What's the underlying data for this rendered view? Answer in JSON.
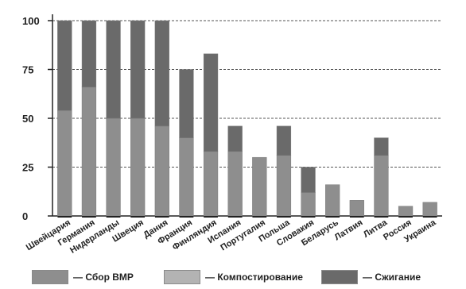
{
  "chart_data": {
    "type": "bar",
    "stacked": true,
    "categories": [
      "Швейцария",
      "Германия",
      "Нидерланды",
      "Швеция",
      "Дания",
      "Франция",
      "Финляндия",
      "Испания",
      "Португалия",
      "Польша",
      "Словакия",
      "Беларусь",
      "Латвия",
      "Литва",
      "Россия",
      "Украина"
    ],
    "series": [
      {
        "name": "Сбор ВМР",
        "color": "#8e8e8e",
        "values": [
          54,
          66,
          50,
          50,
          46,
          40,
          33,
          33,
          30,
          31,
          12,
          16,
          8,
          31,
          5,
          7
        ]
      },
      {
        "name": "Компостирование",
        "color": "#b3b3b3",
        "values": [
          0,
          0,
          0,
          0,
          0,
          0,
          0,
          0,
          0,
          0,
          0,
          0,
          0,
          0,
          0,
          0
        ]
      },
      {
        "name": "Сжигание",
        "color": "#6a6a6a",
        "values": [
          46,
          34,
          50,
          50,
          54,
          35,
          50,
          13,
          0,
          15,
          13,
          0,
          0,
          9,
          0,
          0
        ]
      }
    ],
    "ylim": [
      0,
      100
    ],
    "yticks": [
      "0",
      "25",
      "50",
      "75",
      "100"
    ],
    "grid": "dotted horizontal",
    "legend": "bottom"
  },
  "legend": {
    "items": [
      {
        "label": "— Сбор ВМР",
        "color": "#8e8e8e"
      },
      {
        "label": "— Компостирование",
        "color": "#b3b3b3"
      },
      {
        "label": "— Сжигание",
        "color": "#6a6a6a"
      }
    ]
  }
}
